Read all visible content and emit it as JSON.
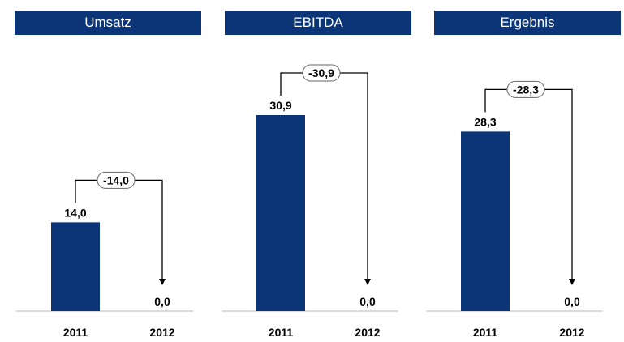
{
  "chart_data": [
    {
      "type": "bar",
      "title": "Umsatz",
      "categories": [
        "2011",
        "2012"
      ],
      "values": [
        14.0,
        0.0
      ],
      "value_labels": [
        "14,0",
        "0,0"
      ],
      "difference": -14.0,
      "difference_label": "-14,0",
      "bar_color": "#0b3577",
      "ylim": [
        0,
        32
      ]
    },
    {
      "type": "bar",
      "title": "EBITDA",
      "categories": [
        "2011",
        "2012"
      ],
      "values": [
        30.9,
        0.0
      ],
      "value_labels": [
        "30,9",
        "0,0"
      ],
      "difference": -30.9,
      "difference_label": "-30,9",
      "bar_color": "#0b3577",
      "ylim": [
        0,
        32
      ]
    },
    {
      "type": "bar",
      "title": "Ergebnis",
      "categories": [
        "2011",
        "2012"
      ],
      "values": [
        28.3,
        0.0
      ],
      "value_labels": [
        "28,3",
        "0,0"
      ],
      "difference": -28.3,
      "difference_label": "-28,3",
      "bar_color": "#0b3577",
      "ylim": [
        0,
        32
      ]
    }
  ]
}
